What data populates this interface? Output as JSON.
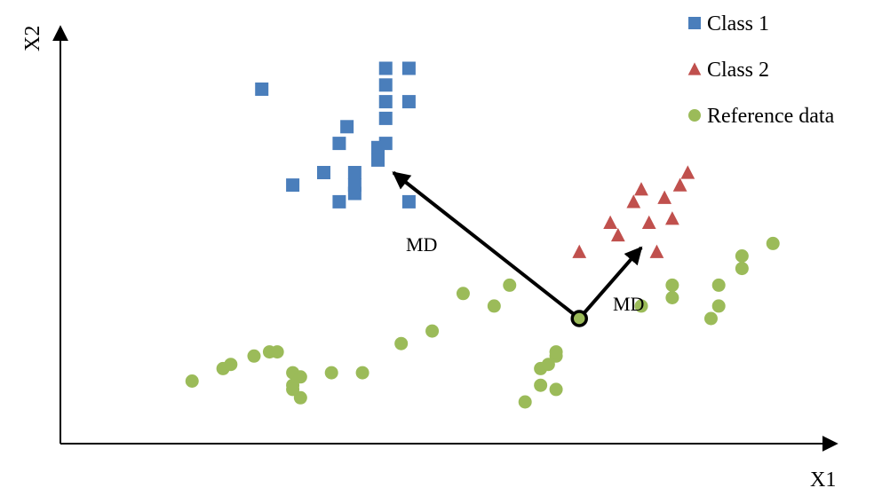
{
  "chart_data": {
    "type": "scatter",
    "title": "",
    "xlabel": "X1",
    "ylabel": "X2",
    "grid": false,
    "legend_position": "top-right",
    "xlim": [
      0,
      100
    ],
    "ylim": [
      0,
      100
    ],
    "series": [
      {
        "name": "Class 1",
        "marker": "square",
        "color": "#4a7ebb",
        "points": [
          [
            26,
            85
          ],
          [
            30,
            62
          ],
          [
            34,
            65
          ],
          [
            36,
            58
          ],
          [
            36,
            72
          ],
          [
            37,
            76
          ],
          [
            38,
            65
          ],
          [
            38,
            62
          ],
          [
            38,
            60
          ],
          [
            41,
            71
          ],
          [
            41,
            68
          ],
          [
            42,
            72
          ],
          [
            42,
            90
          ],
          [
            42,
            86
          ],
          [
            42,
            82
          ],
          [
            42,
            78
          ],
          [
            45,
            58
          ],
          [
            45,
            82
          ],
          [
            45,
            90
          ]
        ]
      },
      {
        "name": "Class 2",
        "marker": "triangle",
        "color": "#c0504d",
        "points": [
          [
            67,
            46
          ],
          [
            71,
            53
          ],
          [
            72,
            50
          ],
          [
            74,
            58
          ],
          [
            75,
            61
          ],
          [
            76,
            53
          ],
          [
            77,
            46
          ],
          [
            78,
            59
          ],
          [
            79,
            54
          ],
          [
            80,
            62
          ],
          [
            81,
            65
          ]
        ]
      },
      {
        "name": "Reference data",
        "marker": "circle",
        "color": "#9bbb59",
        "points": [
          [
            17,
            15
          ],
          [
            21,
            18
          ],
          [
            22,
            19
          ],
          [
            25,
            21
          ],
          [
            27,
            22
          ],
          [
            28,
            22
          ],
          [
            30,
            14
          ],
          [
            30,
            17
          ],
          [
            31,
            16
          ],
          [
            31,
            11
          ],
          [
            30,
            13
          ],
          [
            35,
            17
          ],
          [
            39,
            17
          ],
          [
            44,
            24
          ],
          [
            48,
            27
          ],
          [
            52,
            36
          ],
          [
            56,
            33
          ],
          [
            58,
            38
          ],
          [
            60,
            10
          ],
          [
            62,
            14
          ],
          [
            62,
            18
          ],
          [
            63,
            19
          ],
          [
            64,
            21
          ],
          [
            64,
            22
          ],
          [
            64,
            13
          ],
          [
            75,
            33
          ],
          [
            79,
            38
          ],
          [
            79,
            35
          ],
          [
            84,
            30
          ],
          [
            85,
            33
          ],
          [
            85,
            38
          ],
          [
            88,
            45
          ],
          [
            88,
            42
          ],
          [
            92,
            48
          ]
        ]
      }
    ],
    "reference_point": [
      67,
      30
    ],
    "annotations": [
      {
        "text": "MD",
        "from": [
          67,
          30
        ],
        "to": [
          43,
          65
        ]
      },
      {
        "text": "MD",
        "from": [
          67,
          30
        ],
        "to": [
          75,
          47
        ]
      }
    ]
  }
}
